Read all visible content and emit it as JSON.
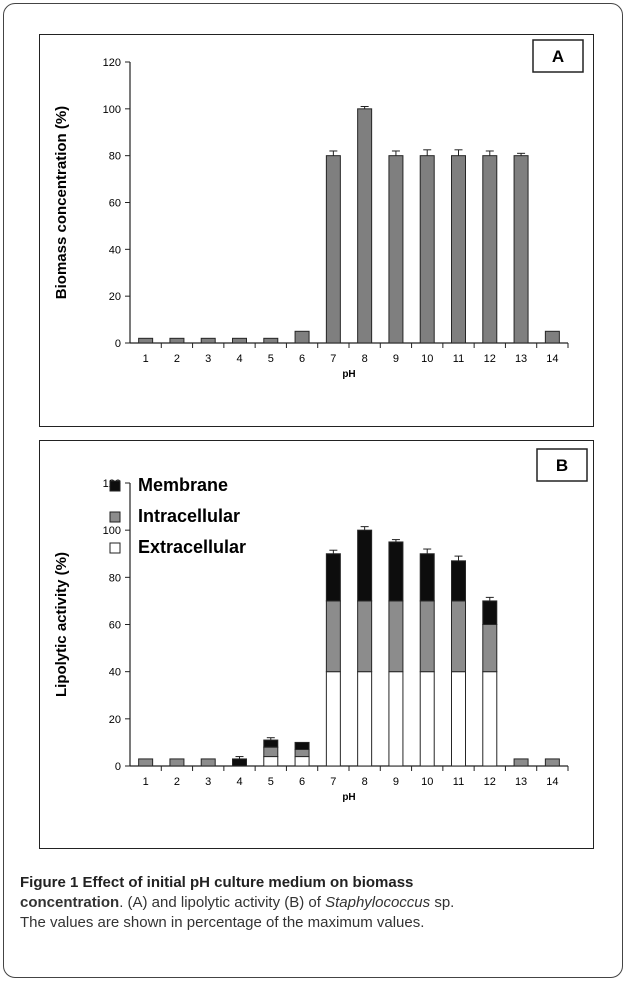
{
  "chart_data": [
    {
      "type": "bar",
      "panel_label": "A",
      "categories": [
        "1",
        "2",
        "3",
        "4",
        "5",
        "6",
        "7",
        "8",
        "9",
        "10",
        "11",
        "12",
        "13",
        "14"
      ],
      "values": [
        2,
        2,
        2,
        2,
        2,
        5,
        80,
        100,
        80,
        80,
        80,
        80,
        80,
        5
      ],
      "errors": [
        0,
        0,
        0,
        0,
        0,
        0,
        2,
        1,
        2,
        2.5,
        2.5,
        2,
        1,
        0
      ],
      "xlabel": "pH",
      "ylabel": "Biomass concentration (%)",
      "ylim": [
        0,
        120
      ],
      "yticks": [
        0,
        20,
        40,
        60,
        80,
        100,
        120
      ],
      "colors": {
        "bar": "#7f7f7f",
        "edge": "#262626"
      }
    },
    {
      "type": "bar",
      "stacked": true,
      "panel_label": "B",
      "categories": [
        "1",
        "2",
        "3",
        "4",
        "5",
        "6",
        "7",
        "8",
        "9",
        "10",
        "11",
        "12",
        "13",
        "14"
      ],
      "series": [
        {
          "name": "Extracellular",
          "color": "#ffffff",
          "values": [
            0,
            0,
            0,
            0,
            4,
            4,
            40,
            40,
            40,
            40,
            40,
            40,
            0,
            0
          ]
        },
        {
          "name": "Intracellular",
          "color": "#8c8c8c",
          "values": [
            3,
            3,
            3,
            0,
            4,
            3,
            30,
            30,
            30,
            30,
            30,
            20,
            3,
            3
          ]
        },
        {
          "name": "Membrane",
          "color": "#0d0d0d",
          "values": [
            0,
            0,
            0,
            3,
            3,
            3,
            20,
            30,
            25,
            20,
            17,
            10,
            0,
            0
          ]
        }
      ],
      "errors": [
        0,
        0,
        0,
        1,
        1,
        0,
        1.5,
        1.5,
        1,
        2,
        2,
        1.5,
        0,
        0
      ],
      "legend_order": [
        "Membrane",
        "Intracellular",
        "Extracellular"
      ],
      "legend_position": "top-left",
      "xlabel": "pH",
      "ylabel": "Lipolytic activity (%)",
      "ylim": [
        0,
        120
      ],
      "yticks": [
        0,
        20,
        40,
        60,
        80,
        100,
        120
      ]
    }
  ],
  "caption": {
    "title": "Figure 1 Effect of initial pH culture medium on biomass",
    "title_cont": "concentration",
    "line2_rest": ". (A) and lipolytic activity (B) of ",
    "organism": "Staphylococcus",
    "line2_end": " sp.",
    "line3": "The values are shown in percentage of the maximum values."
  }
}
